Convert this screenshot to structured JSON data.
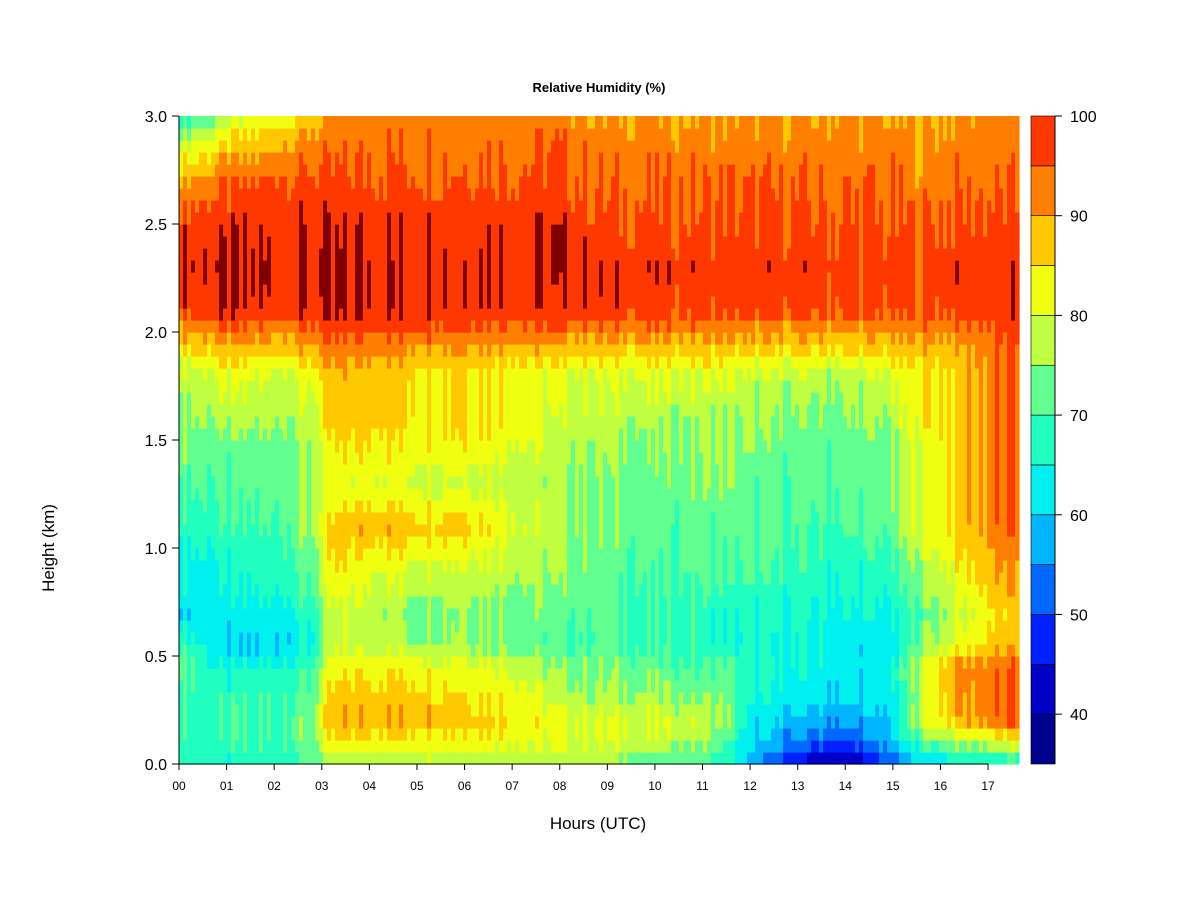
{
  "chart_data": {
    "type": "heatmap",
    "title": "Relative Humidity (%)",
    "xlabel": "Hours (UTC)",
    "ylabel": "Height (km)",
    "xlim": [
      0,
      17.65
    ],
    "ylim": [
      0,
      3.0
    ],
    "x_ticks": [
      "00",
      "01",
      "02",
      "03",
      "04",
      "05",
      "06",
      "07",
      "08",
      "09",
      "10",
      "11",
      "12",
      "13",
      "14",
      "15",
      "16",
      "17"
    ],
    "y_ticks": [
      "0.0",
      "0.5",
      "1.0",
      "1.5",
      "2.0",
      "2.5",
      "3.0"
    ],
    "colorbar": {
      "levels": [
        35,
        40,
        45,
        50,
        55,
        60,
        65,
        70,
        75,
        80,
        85,
        90,
        95,
        100
      ],
      "tick_labels": [
        "40",
        "50",
        "60",
        "70",
        "80",
        "90",
        "100"
      ],
      "colors": [
        "#00008F",
        "#0000C8",
        "#0020FF",
        "#0068FF",
        "#00B4FF",
        "#00F0F0",
        "#20FFC0",
        "#60FF90",
        "#C0FF40",
        "#F0FF10",
        "#FFC800",
        "#FF8000",
        "#FF3800",
        "#E00000",
        "#800000"
      ]
    },
    "rh_profiles": {
      "heights_km": [
        0.0,
        0.1,
        0.2,
        0.3,
        0.45,
        0.55,
        0.7,
        0.9,
        1.1,
        1.3,
        1.5,
        1.6,
        1.8,
        1.9,
        2.0,
        2.1,
        2.3,
        2.5,
        2.7,
        2.9,
        3.0
      ],
      "times_h": [
        0.0,
        1.0,
        2.0,
        2.8,
        3.2,
        4.0,
        5.0,
        6.0,
        7.0,
        8.0,
        9.0,
        10.0,
        11.0,
        11.5,
        12.0,
        13.0,
        14.0,
        15.0,
        15.6,
        16.3,
        17.0,
        17.3,
        17.65
      ],
      "values": [
        [
          66,
          68,
          68,
          70,
          74,
          70,
          62,
          64,
          68,
          72,
          74,
          76,
          78,
          84,
          90,
          98,
          100,
          98,
          90,
          76,
          66
        ],
        [
          64,
          68,
          68,
          68,
          64,
          58,
          62,
          64,
          68,
          70,
          72,
          76,
          80,
          86,
          92,
          99,
          100,
          98,
          94,
          84,
          76
        ],
        [
          66,
          70,
          70,
          70,
          66,
          60,
          64,
          68,
          70,
          72,
          74,
          76,
          80,
          86,
          92,
          99,
          100,
          99,
          96,
          88,
          82
        ],
        [
          70,
          74,
          74,
          72,
          70,
          64,
          68,
          72,
          76,
          76,
          76,
          78,
          82,
          88,
          94,
          99,
          100,
          99,
          96,
          92,
          86
        ],
        [
          76,
          82,
          88,
          87,
          82,
          78,
          78,
          84,
          86,
          80,
          84,
          86,
          88,
          90,
          96,
          100,
          100,
          99,
          96,
          92,
          90
        ],
        [
          77,
          84,
          90,
          88,
          84,
          78,
          78,
          82,
          90,
          82,
          86,
          88,
          88,
          92,
          96,
          100,
          100,
          99,
          96,
          94,
          92
        ],
        [
          78,
          84,
          90,
          88,
          84,
          76,
          74,
          80,
          88,
          80,
          84,
          86,
          86,
          90,
          96,
          100,
          100,
          99,
          96,
          94,
          92
        ],
        [
          78,
          84,
          88,
          86,
          82,
          76,
          76,
          80,
          88,
          80,
          86,
          86,
          86,
          90,
          96,
          100,
          100,
          99,
          96,
          94,
          92
        ],
        [
          77,
          82,
          86,
          84,
          80,
          74,
          74,
          78,
          82,
          78,
          82,
          84,
          84,
          88,
          94,
          99,
          100,
          99,
          96,
          94,
          92
        ],
        [
          74,
          80,
          82,
          78,
          74,
          70,
          72,
          74,
          76,
          76,
          78,
          78,
          80,
          86,
          94,
          98,
          99,
          99,
          96,
          94,
          92
        ],
        [
          74,
          80,
          80,
          76,
          74,
          72,
          72,
          72,
          74,
          74,
          76,
          78,
          80,
          86,
          92,
          98,
          98,
          96,
          94,
          92,
          90
        ],
        [
          72,
          78,
          80,
          76,
          72,
          68,
          68,
          70,
          72,
          72,
          74,
          76,
          80,
          86,
          92,
          97,
          98,
          96,
          94,
          92,
          90
        ],
        [
          70,
          76,
          78,
          74,
          70,
          68,
          68,
          72,
          72,
          74,
          76,
          76,
          80,
          86,
          92,
          97,
          98,
          96,
          94,
          92,
          90
        ],
        [
          66,
          70,
          76,
          74,
          72,
          66,
          66,
          70,
          72,
          74,
          76,
          76,
          80,
          86,
          92,
          97,
          98,
          96,
          94,
          92,
          90
        ],
        [
          58,
          60,
          62,
          64,
          66,
          64,
          66,
          70,
          72,
          72,
          74,
          74,
          78,
          84,
          90,
          97,
          98,
          96,
          94,
          92,
          90
        ],
        [
          42,
          54,
          58,
          62,
          64,
          64,
          66,
          68,
          70,
          72,
          72,
          74,
          78,
          84,
          90,
          97,
          98,
          96,
          94,
          92,
          90
        ],
        [
          36,
          50,
          56,
          60,
          62,
          62,
          64,
          66,
          70,
          72,
          72,
          74,
          76,
          84,
          90,
          96,
          97,
          95,
          94,
          92,
          90
        ],
        [
          52,
          58,
          60,
          62,
          64,
          62,
          64,
          68,
          72,
          74,
          74,
          76,
          80,
          86,
          90,
          96,
          97,
          95,
          94,
          92,
          90
        ],
        [
          60,
          70,
          80,
          78,
          80,
          74,
          72,
          76,
          82,
          82,
          82,
          84,
          84,
          88,
          92,
          96,
          97,
          95,
          92,
          90,
          88
        ],
        [
          62,
          76,
          88,
          90,
          92,
          80,
          78,
          82,
          86,
          86,
          86,
          86,
          86,
          88,
          92,
          97,
          98,
          96,
          94,
          92,
          90
        ],
        [
          64,
          78,
          92,
          92,
          92,
          86,
          84,
          88,
          92,
          92,
          92,
          92,
          92,
          92,
          94,
          98,
          98,
          96,
          94,
          92,
          92
        ],
        [
          66,
          80,
          94,
          94,
          94,
          88,
          86,
          90,
          94,
          94,
          94,
          94,
          94,
          94,
          96,
          98,
          98,
          96,
          94,
          92,
          92
        ],
        [
          66,
          80,
          94,
          94,
          94,
          88,
          86,
          90,
          94,
          94,
          94,
          94,
          94,
          94,
          96,
          98,
          98,
          96,
          94,
          92,
          92
        ]
      ]
    }
  }
}
